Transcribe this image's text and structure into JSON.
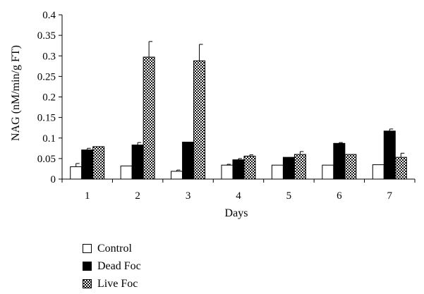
{
  "chart_data": {
    "type": "bar",
    "title": "",
    "xlabel": "Days",
    "ylabel": "NAG (nM/min/g FT)",
    "categories": [
      "1",
      "2",
      "3",
      "4",
      "5",
      "6",
      "7"
    ],
    "ylim": [
      0,
      0.4
    ],
    "yticks": [
      "0",
      "0.05",
      "0.1",
      "0.15",
      "0.2",
      "0.25",
      "0.3",
      "0.35",
      "0.4"
    ],
    "grid": false,
    "legend_position": "bottom-left",
    "series": [
      {
        "name": "Control",
        "fill": "white",
        "values": [
          0.03,
          0.032,
          0.019,
          0.034,
          0.034,
          0.034,
          0.035
        ],
        "errors": [
          0.008,
          0.0,
          0.003,
          0.002,
          0.0,
          0.0,
          0.0
        ]
      },
      {
        "name": "Dead Foc",
        "fill": "black",
        "values": [
          0.071,
          0.083,
          0.09,
          0.047,
          0.053,
          0.087,
          0.117
        ],
        "errors": [
          0.004,
          0.006,
          0.0,
          0.003,
          0.0,
          0.002,
          0.005
        ]
      },
      {
        "name": "Live Foc",
        "fill": "checkered",
        "values": [
          0.079,
          0.297,
          0.288,
          0.056,
          0.06,
          0.06,
          0.053
        ],
        "errors": [
          0.0,
          0.038,
          0.04,
          0.003,
          0.007,
          0.0,
          0.01
        ]
      }
    ]
  },
  "colors": {
    "control": "#ffffff",
    "dead_foc": "#000000",
    "live_foc_pattern": "checkered"
  }
}
